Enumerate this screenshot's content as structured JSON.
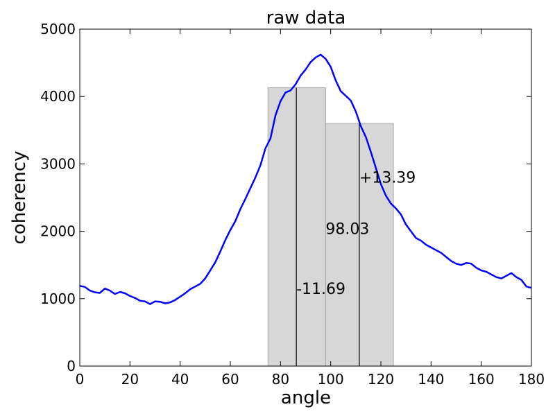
{
  "chart_data": {
    "type": "line",
    "title": "raw data",
    "xlabel": "angle",
    "ylabel": "coherency",
    "xlim": [
      0,
      180
    ],
    "ylim": [
      0,
      5000
    ],
    "xticks": [
      0,
      20,
      40,
      60,
      80,
      100,
      120,
      140,
      160,
      180
    ],
    "xtick_labels": [
      "0",
      "20",
      "40",
      "60",
      "80",
      "100",
      "120",
      "140",
      "160",
      "180"
    ],
    "yticks": [
      0,
      1000,
      2000,
      3000,
      4000,
      5000
    ],
    "ytick_labels": [
      "0",
      "1000",
      "2000",
      "3000",
      "4000",
      "5000"
    ],
    "grid": false,
    "line_color": "#0000ff",
    "bar_color": "#bfbfbf",
    "series": [
      {
        "x": [
          0,
          2,
          4,
          6,
          8,
          10,
          12,
          14,
          16,
          18,
          20,
          22,
          24,
          26,
          28,
          30,
          32,
          34,
          36,
          38,
          40,
          42,
          44,
          46,
          48,
          50,
          52,
          54,
          56,
          58,
          60,
          62,
          64,
          66,
          68,
          70,
          72,
          74,
          76,
          78,
          80,
          82,
          84,
          86,
          88,
          90,
          92,
          94,
          96,
          98,
          100,
          102,
          104,
          106,
          108,
          110,
          112,
          114,
          116,
          118,
          120,
          122,
          124,
          126,
          128,
          130,
          132,
          134,
          136,
          138,
          140,
          142,
          144,
          146,
          148,
          150,
          152,
          154,
          156,
          158,
          160,
          162,
          164,
          166,
          168,
          170,
          172,
          174,
          176,
          178,
          180
        ],
        "values": [
          1190,
          1175,
          1120,
          1095,
          1085,
          1150,
          1120,
          1070,
          1100,
          1080,
          1040,
          1010,
          970,
          960,
          920,
          960,
          955,
          930,
          945,
          980,
          1030,
          1080,
          1140,
          1180,
          1220,
          1300,
          1420,
          1540,
          1700,
          1870,
          2020,
          2150,
          2330,
          2480,
          2640,
          2800,
          2980,
          3230,
          3380,
          3720,
          3930,
          4060,
          4090,
          4180,
          4310,
          4400,
          4510,
          4580,
          4620,
          4560,
          4440,
          4240,
          4080,
          4010,
          3940,
          3780,
          3560,
          3400,
          3180,
          2940,
          2700,
          2530,
          2410,
          2340,
          2250,
          2100,
          2000,
          1900,
          1860,
          1800,
          1760,
          1720,
          1680,
          1620,
          1560,
          1520,
          1500,
          1530,
          1520,
          1460,
          1420,
          1400,
          1360,
          1320,
          1300,
          1340,
          1380,
          1320,
          1280,
          1180,
          1160
        ]
      }
    ],
    "bars": [
      {
        "x_start": 75,
        "x_end": 98,
        "height": 4130
      },
      {
        "x_start": 98,
        "x_end": 125,
        "height": 3600
      }
    ],
    "vlines": [
      {
        "x": 86.3,
        "y_top": 4130
      },
      {
        "x": 111.4,
        "y_top": 3600
      }
    ],
    "annotations": [
      {
        "text": "-11.69",
        "x": 86.3,
        "y": 1070
      },
      {
        "text": "98.03",
        "x": 98,
        "y": 1960
      },
      {
        "text": "+13.39",
        "x": 111.4,
        "y": 2720
      }
    ]
  }
}
